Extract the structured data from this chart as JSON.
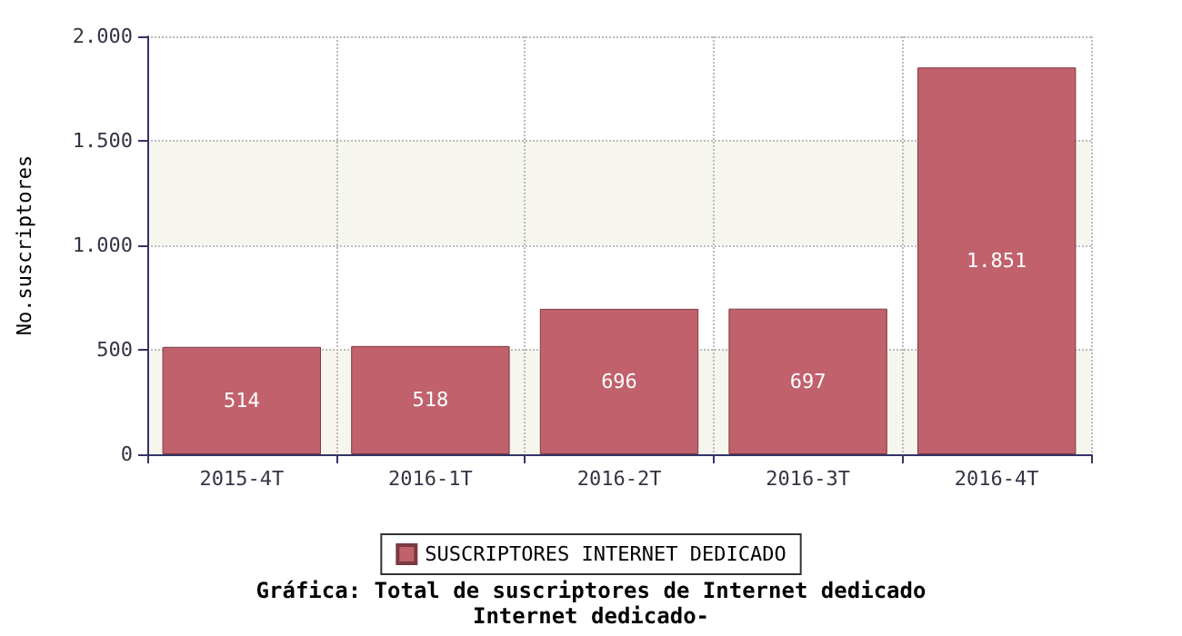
{
  "chart_data": {
    "type": "bar",
    "title": "Gráfica: Total de suscriptores de Internet dedicado",
    "subtitle": "Internet dedicado-",
    "ylabel": "No.suscriptores",
    "categories": [
      "2015-4T",
      "2016-1T",
      "2016-2T",
      "2016-3T",
      "2016-4T"
    ],
    "series": [
      {
        "name": "SUSCRIPTORES INTERNET DEDICADO",
        "color": "#c0616b",
        "values": [
          514,
          518,
          696,
          697,
          1851
        ],
        "value_labels": [
          "514",
          "518",
          "696",
          "697",
          "1.851"
        ]
      }
    ],
    "ylim": [
      0,
      2000
    ],
    "yticks": [
      {
        "value": 0,
        "label": "0"
      },
      {
        "value": 500,
        "label": "500"
      },
      {
        "value": 1000,
        "label": "1.000"
      },
      {
        "value": 1500,
        "label": "1.500"
      },
      {
        "value": 2000,
        "label": "2.000"
      }
    ],
    "grid": true,
    "legend": "bottom"
  }
}
